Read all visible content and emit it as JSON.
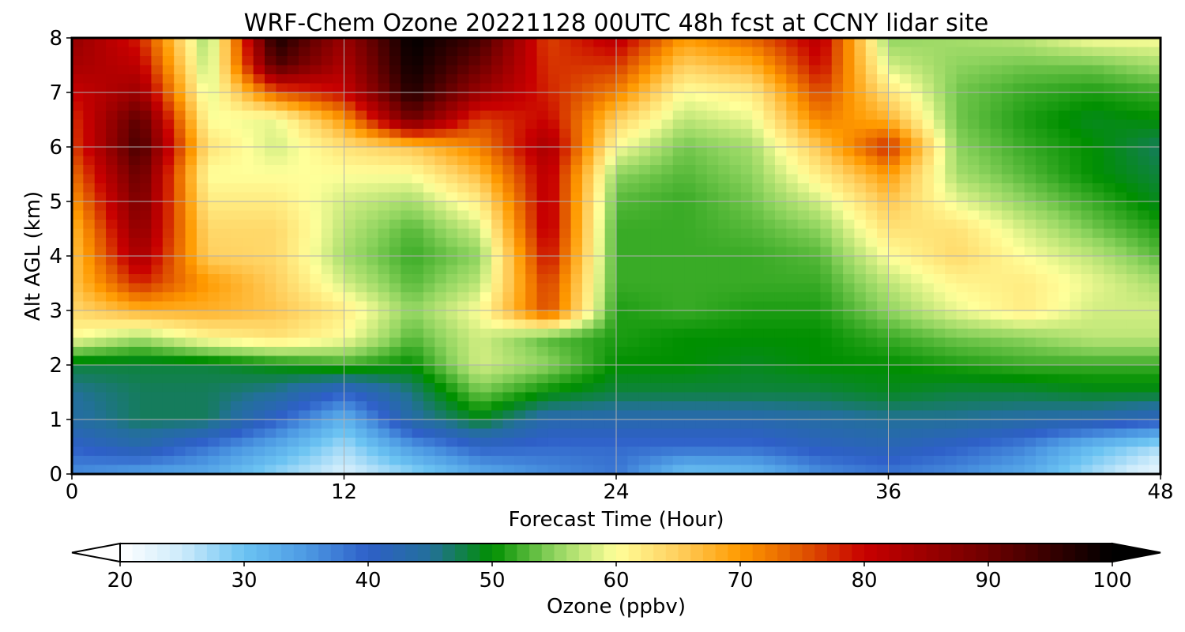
{
  "chart_data": {
    "type": "heatmap",
    "title": "WRF-Chem Ozone  20221128 00UTC 48h fcst at CCNY lidar site",
    "xlabel": "Forecast Time (Hour)",
    "ylabel": "Alt AGL (km)",
    "xlim": [
      0,
      48
    ],
    "ylim": [
      0,
      8
    ],
    "xticks": [
      "0",
      "12",
      "24",
      "36",
      "48"
    ],
    "yticks": [
      "0",
      "1",
      "2",
      "3",
      "4",
      "5",
      "6",
      "7",
      "8"
    ],
    "grid": true,
    "x": [
      0,
      3,
      6,
      9,
      12,
      15,
      18,
      21,
      24,
      27,
      30,
      33,
      36,
      39,
      42,
      45,
      48
    ],
    "y": [
      0,
      0.5,
      1,
      1.5,
      2,
      2.5,
      3,
      3.5,
      4,
      4.5,
      5,
      5.5,
      6,
      6.5,
      7,
      7.5,
      8
    ],
    "z": [
      [
        36,
        34,
        33,
        28,
        24,
        28,
        33,
        36,
        38,
        30,
        31,
        36,
        38,
        36,
        33,
        27,
        22
      ],
      [
        40,
        43,
        38,
        33,
        27,
        35,
        40,
        39,
        39,
        39,
        39,
        41,
        42,
        40,
        37,
        31,
        27
      ],
      [
        44,
        47,
        47,
        40,
        32,
        44,
        49,
        43,
        43,
        43,
        43,
        44,
        45,
        45,
        44,
        43,
        41
      ],
      [
        45,
        47,
        47,
        45,
        40,
        46,
        54,
        50,
        48,
        48,
        48,
        48,
        49,
        48,
        48,
        49,
        49
      ],
      [
        48,
        48,
        48,
        50,
        52,
        50,
        58,
        55,
        50,
        50,
        49,
        50,
        50,
        51,
        52,
        52,
        52
      ],
      [
        60,
        56,
        61,
        63,
        60,
        53,
        58,
        53,
        51,
        50,
        50,
        50,
        52,
        54,
        55,
        57,
        57
      ],
      [
        64,
        68,
        68,
        66,
        62,
        55,
        60,
        76,
        51,
        52,
        51,
        51,
        55,
        59,
        62,
        58,
        58
      ],
      [
        66,
        78,
        70,
        65,
        58,
        53,
        57,
        77,
        52,
        52,
        52,
        52,
        57,
        61,
        62,
        59,
        56
      ],
      [
        66,
        84,
        65,
        64,
        56,
        52,
        55,
        80,
        52,
        52,
        52,
        53,
        60,
        64,
        60,
        57,
        53
      ],
      [
        67,
        87,
        64,
        64,
        57,
        53,
        58,
        82,
        52,
        52,
        53,
        55,
        63,
        63,
        58,
        54,
        51
      ],
      [
        70,
        89,
        62,
        62,
        58,
        56,
        62,
        82,
        53,
        52,
        54,
        58,
        66,
        59,
        55,
        52,
        49
      ],
      [
        73,
        91,
        60,
        60,
        60,
        60,
        67,
        82,
        55,
        53,
        55,
        62,
        70,
        56,
        53,
        50,
        48
      ],
      [
        76,
        94,
        63,
        58,
        63,
        66,
        72,
        84,
        60,
        54,
        56,
        66,
        78,
        55,
        52,
        50,
        47
      ],
      [
        77,
        92,
        60,
        59,
        70,
        90,
        76,
        80,
        65,
        57,
        59,
        72,
        68,
        54,
        51,
        49,
        50
      ],
      [
        80,
        85,
        58,
        75,
        80,
        97,
        85,
        78,
        72,
        60,
        62,
        76,
        63,
        54,
        52,
        51,
        52
      ],
      [
        84,
        81,
        56,
        93,
        83,
        99,
        90,
        77,
        77,
        65,
        68,
        80,
        58,
        55,
        54,
        54,
        56
      ],
      [
        86,
        78,
        55,
        98,
        85,
        100,
        94,
        76,
        82,
        70,
        74,
        82,
        55,
        56,
        57,
        60,
        60
      ]
    ]
  },
  "colorbar": {
    "label": "Ozone  (ppbv)",
    "min": 20,
    "max": 100,
    "ticks": [
      "20",
      "30",
      "40",
      "50",
      "60",
      "70",
      "80",
      "90",
      "100"
    ],
    "extend": "both",
    "colors": [
      {
        "v": 20,
        "c": "#ffffff"
      },
      {
        "v": 25,
        "c": "#cdebfb"
      },
      {
        "v": 30,
        "c": "#6bc3f2"
      },
      {
        "v": 35,
        "c": "#4d9ae3"
      },
      {
        "v": 40,
        "c": "#2e5fc8"
      },
      {
        "v": 45,
        "c": "#23709a"
      },
      {
        "v": 50,
        "c": "#008f00"
      },
      {
        "v": 55,
        "c": "#8fd45f"
      },
      {
        "v": 60,
        "c": "#ffff9a"
      },
      {
        "v": 65,
        "c": "#ffcf5e"
      },
      {
        "v": 70,
        "c": "#ff9a00"
      },
      {
        "v": 75,
        "c": "#e05500"
      },
      {
        "v": 80,
        "c": "#c80000"
      },
      {
        "v": 85,
        "c": "#9c0000"
      },
      {
        "v": 90,
        "c": "#6e0000"
      },
      {
        "v": 95,
        "c": "#360000"
      },
      {
        "v": 100,
        "c": "#000000"
      }
    ]
  }
}
